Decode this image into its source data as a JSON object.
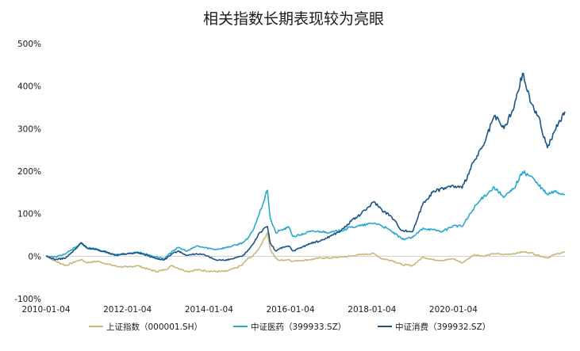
{
  "chart_data": {
    "type": "line",
    "title": "相关指数长期表现较为亮眼",
    "xlabel": "",
    "ylabel": "",
    "ylim": [
      -100,
      500
    ],
    "y_unit": "%",
    "y_ticks": [
      "500%",
      "400%",
      "300%",
      "200%",
      "100%",
      "0%",
      "-100%"
    ],
    "y_tick_values": [
      500,
      400,
      300,
      200,
      100,
      0,
      -100
    ],
    "x_ticks": [
      "2010-01-04",
      "2012-01-04",
      "2014-01-04",
      "2016-01-04",
      "2018-01-04",
      "2020-01-04"
    ],
    "x_range": [
      "2010-01-04",
      "2022-09-30"
    ],
    "grid": false,
    "legend_position": "bottom",
    "series": [
      {
        "name": "上证指数（000001.SH）",
        "color": "#c9b87c",
        "x": [
          "2010-01-04",
          "2010-04-01",
          "2010-07-01",
          "2010-10-01",
          "2010-11-15",
          "2011-01-04",
          "2011-04-15",
          "2011-07-01",
          "2011-10-01",
          "2012-01-04",
          "2012-04-01",
          "2012-07-01",
          "2012-09-20",
          "2012-12-03",
          "2013-02-08",
          "2013-04-01",
          "2013-06-25",
          "2013-09-15",
          "2013-12-01",
          "2014-03-01",
          "2014-06-01",
          "2014-09-01",
          "2014-11-01",
          "2014-12-15",
          "2015-02-01",
          "2015-04-01",
          "2015-06-12",
          "2015-07-08",
          "2015-08-26",
          "2015-10-01",
          "2015-12-23",
          "2016-01-28",
          "2016-04-01",
          "2016-07-01",
          "2016-10-01",
          "2017-01-01",
          "2017-04-01",
          "2017-07-01",
          "2017-10-01",
          "2018-01-24",
          "2018-04-01",
          "2018-07-01",
          "2018-10-01",
          "2019-01-04",
          "2019-04-08",
          "2019-07-01",
          "2019-10-01",
          "2020-01-04",
          "2020-03-23",
          "2020-07-10",
          "2020-10-01",
          "2021-01-04",
          "2021-04-01",
          "2021-07-01",
          "2021-09-15",
          "2021-12-01",
          "2022-02-01",
          "2022-04-26",
          "2022-07-01",
          "2022-09-30"
        ],
        "values": [
          0,
          -12,
          -22,
          -12,
          -8,
          -15,
          -12,
          -18,
          -24,
          -26,
          -22,
          -30,
          -36,
          -32,
          -22,
          -28,
          -36,
          -32,
          -34,
          -36,
          -36,
          -28,
          -20,
          -6,
          0,
          20,
          55,
          15,
          -5,
          -10,
          -8,
          -12,
          -10,
          -8,
          -4,
          -4,
          -2,
          0,
          4,
          6,
          -6,
          -10,
          -20,
          -22,
          -2,
          -8,
          -10,
          -6,
          -16,
          4,
          0,
          6,
          4,
          6,
          10,
          8,
          2,
          -4,
          4,
          10
        ]
      },
      {
        "name": "中证医药（399933.SZ）",
        "color": "#29a8d4",
        "x": [
          "2010-01-04",
          "2010-04-01",
          "2010-07-01",
          "2010-10-01",
          "2010-11-15",
          "2011-01-04",
          "2011-04-15",
          "2011-07-01",
          "2011-10-01",
          "2012-01-04",
          "2012-04-01",
          "2012-07-01",
          "2012-09-20",
          "2012-12-03",
          "2013-02-08",
          "2013-04-01",
          "2013-06-25",
          "2013-09-15",
          "2013-12-01",
          "2014-03-01",
          "2014-06-01",
          "2014-09-01",
          "2014-11-01",
          "2014-12-15",
          "2015-02-01",
          "2015-04-01",
          "2015-06-12",
          "2015-07-08",
          "2015-08-26",
          "2015-10-01",
          "2015-12-23",
          "2016-01-28",
          "2016-04-01",
          "2016-07-01",
          "2016-10-01",
          "2017-01-01",
          "2017-04-01",
          "2017-07-01",
          "2017-10-01",
          "2018-01-24",
          "2018-04-01",
          "2018-07-01",
          "2018-10-01",
          "2019-01-04",
          "2019-04-08",
          "2019-07-01",
          "2019-10-01",
          "2020-01-04",
          "2020-03-23",
          "2020-07-10",
          "2020-10-01",
          "2021-01-04",
          "2021-04-01",
          "2021-07-01",
          "2021-09-15",
          "2021-12-01",
          "2022-02-01",
          "2022-04-26",
          "2022-07-01",
          "2022-09-30"
        ],
        "values": [
          0,
          -2,
          6,
          22,
          30,
          20,
          16,
          8,
          4,
          6,
          10,
          4,
          -2,
          -6,
          12,
          20,
          12,
          24,
          20,
          16,
          20,
          26,
          32,
          40,
          60,
          100,
          155,
          88,
          55,
          60,
          68,
          46,
          50,
          58,
          58,
          56,
          60,
          68,
          72,
          78,
          72,
          58,
          40,
          44,
          66,
          62,
          58,
          72,
          70,
          115,
          140,
          162,
          138,
          160,
          198,
          188,
          168,
          145,
          152,
          145
        ]
      },
      {
        "name": "中证消费（399932.SZ）",
        "color": "#1b5588",
        "x": [
          "2010-01-04",
          "2010-04-01",
          "2010-07-01",
          "2010-10-01",
          "2010-11-15",
          "2011-01-04",
          "2011-04-15",
          "2011-07-01",
          "2011-10-01",
          "2012-01-04",
          "2012-04-01",
          "2012-07-01",
          "2012-09-20",
          "2012-12-03",
          "2013-02-08",
          "2013-04-01",
          "2013-06-25",
          "2013-09-15",
          "2013-12-01",
          "2014-03-01",
          "2014-06-01",
          "2014-09-01",
          "2014-11-01",
          "2014-12-15",
          "2015-02-01",
          "2015-04-01",
          "2015-06-12",
          "2015-07-08",
          "2015-08-26",
          "2015-10-01",
          "2015-12-23",
          "2016-01-28",
          "2016-04-01",
          "2016-07-01",
          "2016-10-01",
          "2017-01-01",
          "2017-04-01",
          "2017-07-01",
          "2017-10-01",
          "2018-01-24",
          "2018-04-01",
          "2018-07-01",
          "2018-10-01",
          "2019-01-04",
          "2019-04-08",
          "2019-07-01",
          "2019-10-01",
          "2020-01-04",
          "2020-03-23",
          "2020-07-10",
          "2020-10-01",
          "2021-01-04",
          "2021-04-01",
          "2021-07-01",
          "2021-09-15",
          "2021-12-01",
          "2022-02-01",
          "2022-04-26",
          "2022-07-01",
          "2022-09-30"
        ],
        "values": [
          0,
          -8,
          -4,
          18,
          32,
          20,
          14,
          10,
          2,
          6,
          8,
          2,
          -6,
          -8,
          6,
          12,
          2,
          6,
          2,
          -8,
          -10,
          -4,
          0,
          12,
          28,
          55,
          70,
          30,
          12,
          18,
          24,
          12,
          20,
          30,
          36,
          48,
          60,
          82,
          100,
          128,
          110,
          92,
          60,
          58,
          125,
          150,
          160,
          165,
          160,
          225,
          260,
          330,
          300,
          350,
          430,
          360,
          330,
          255,
          295,
          340
        ]
      }
    ]
  }
}
